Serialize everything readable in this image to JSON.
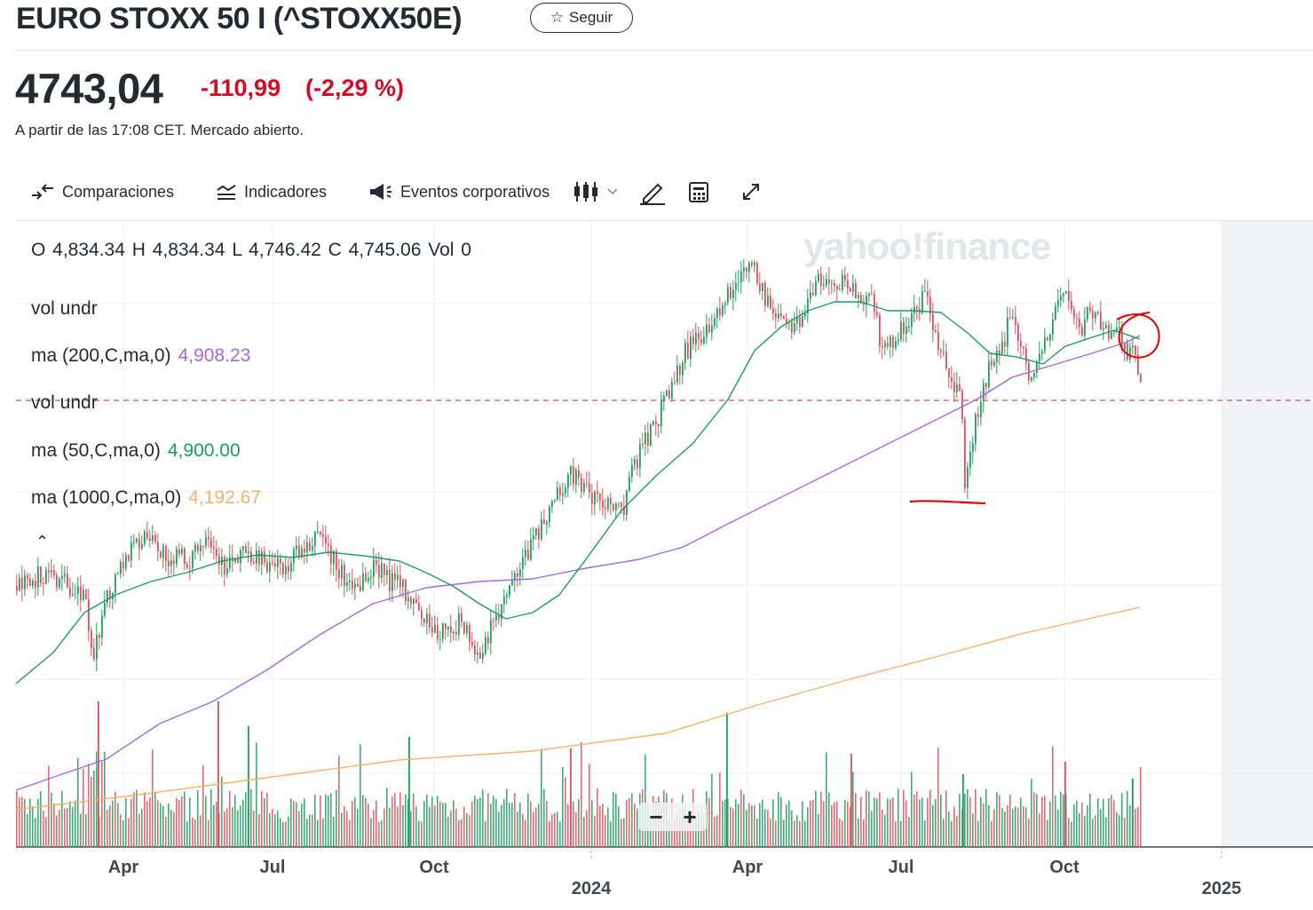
{
  "header": {
    "title": "EURO STOXX 50 I (^STOXX50E)",
    "follow_label": "Seguir",
    "price": "4743,04",
    "change": "-110,99",
    "change_pct": "(-2,29 %)",
    "status": "A partir de las 17:08 CET. Mercado abierto.",
    "colors": {
      "negative": "#d60a22"
    }
  },
  "toolbar": {
    "comparisons": "Comparaciones",
    "indicators": "Indicadores",
    "events": "Eventos corporativos",
    "icons": [
      "compare-arrows-icon",
      "indicators-icon",
      "megaphone-icon",
      "candlestick-icon",
      "chevron-down-icon",
      "pencil-icon",
      "calculator-icon",
      "expand-icon"
    ]
  },
  "chart": {
    "watermark": "yahoo!finance",
    "ohlc": "O 4,834.34   H 4,834.34   L 4,746.42   C 4,745.06   Vol 0",
    "legend": [
      {
        "label": "vol undr",
        "value": "",
        "color": "#232a31"
      },
      {
        "label": "ma (200,C,ma,0)",
        "value": "4,908.23",
        "color": "#a468e0"
      },
      {
        "label": "vol undr",
        "value": "",
        "color": "#232a31"
      },
      {
        "label": "ma (50,C,ma,0)",
        "value": "4,900.00",
        "color": "#1a9e5f"
      },
      {
        "label": "ma (1000,C,ma,0)",
        "value": "4,192.67",
        "color": "#f5b36b"
      }
    ],
    "zoom_minus": "−",
    "zoom_plus": "+",
    "x_ticks": [
      "Apr",
      "Jul",
      "Oct",
      "2024",
      "Apr",
      "Jul",
      "Oct",
      "2025"
    ],
    "colors": {
      "up": "#1aa260",
      "down": "#e84c5a",
      "ma50": "#1a9e5f",
      "ma200": "#a468e0",
      "ma1000": "#f5b36b",
      "annotation": "#e60000",
      "dashed_line": "#d94a5a"
    }
  },
  "chart_data": {
    "type": "line",
    "series": [
      {
        "name": "ma (50,C,ma,0)",
        "last_value": 4900.0
      },
      {
        "name": "ma (200,C,ma,0)",
        "last_value": 4908.23
      },
      {
        "name": "ma (1000,C,ma,0)",
        "last_value": 4192.67
      }
    ],
    "ohlc_last": {
      "open": 4834.34,
      "high": 4834.34,
      "low": 4746.42,
      "close": 4745.06,
      "volume": 0
    }
  }
}
